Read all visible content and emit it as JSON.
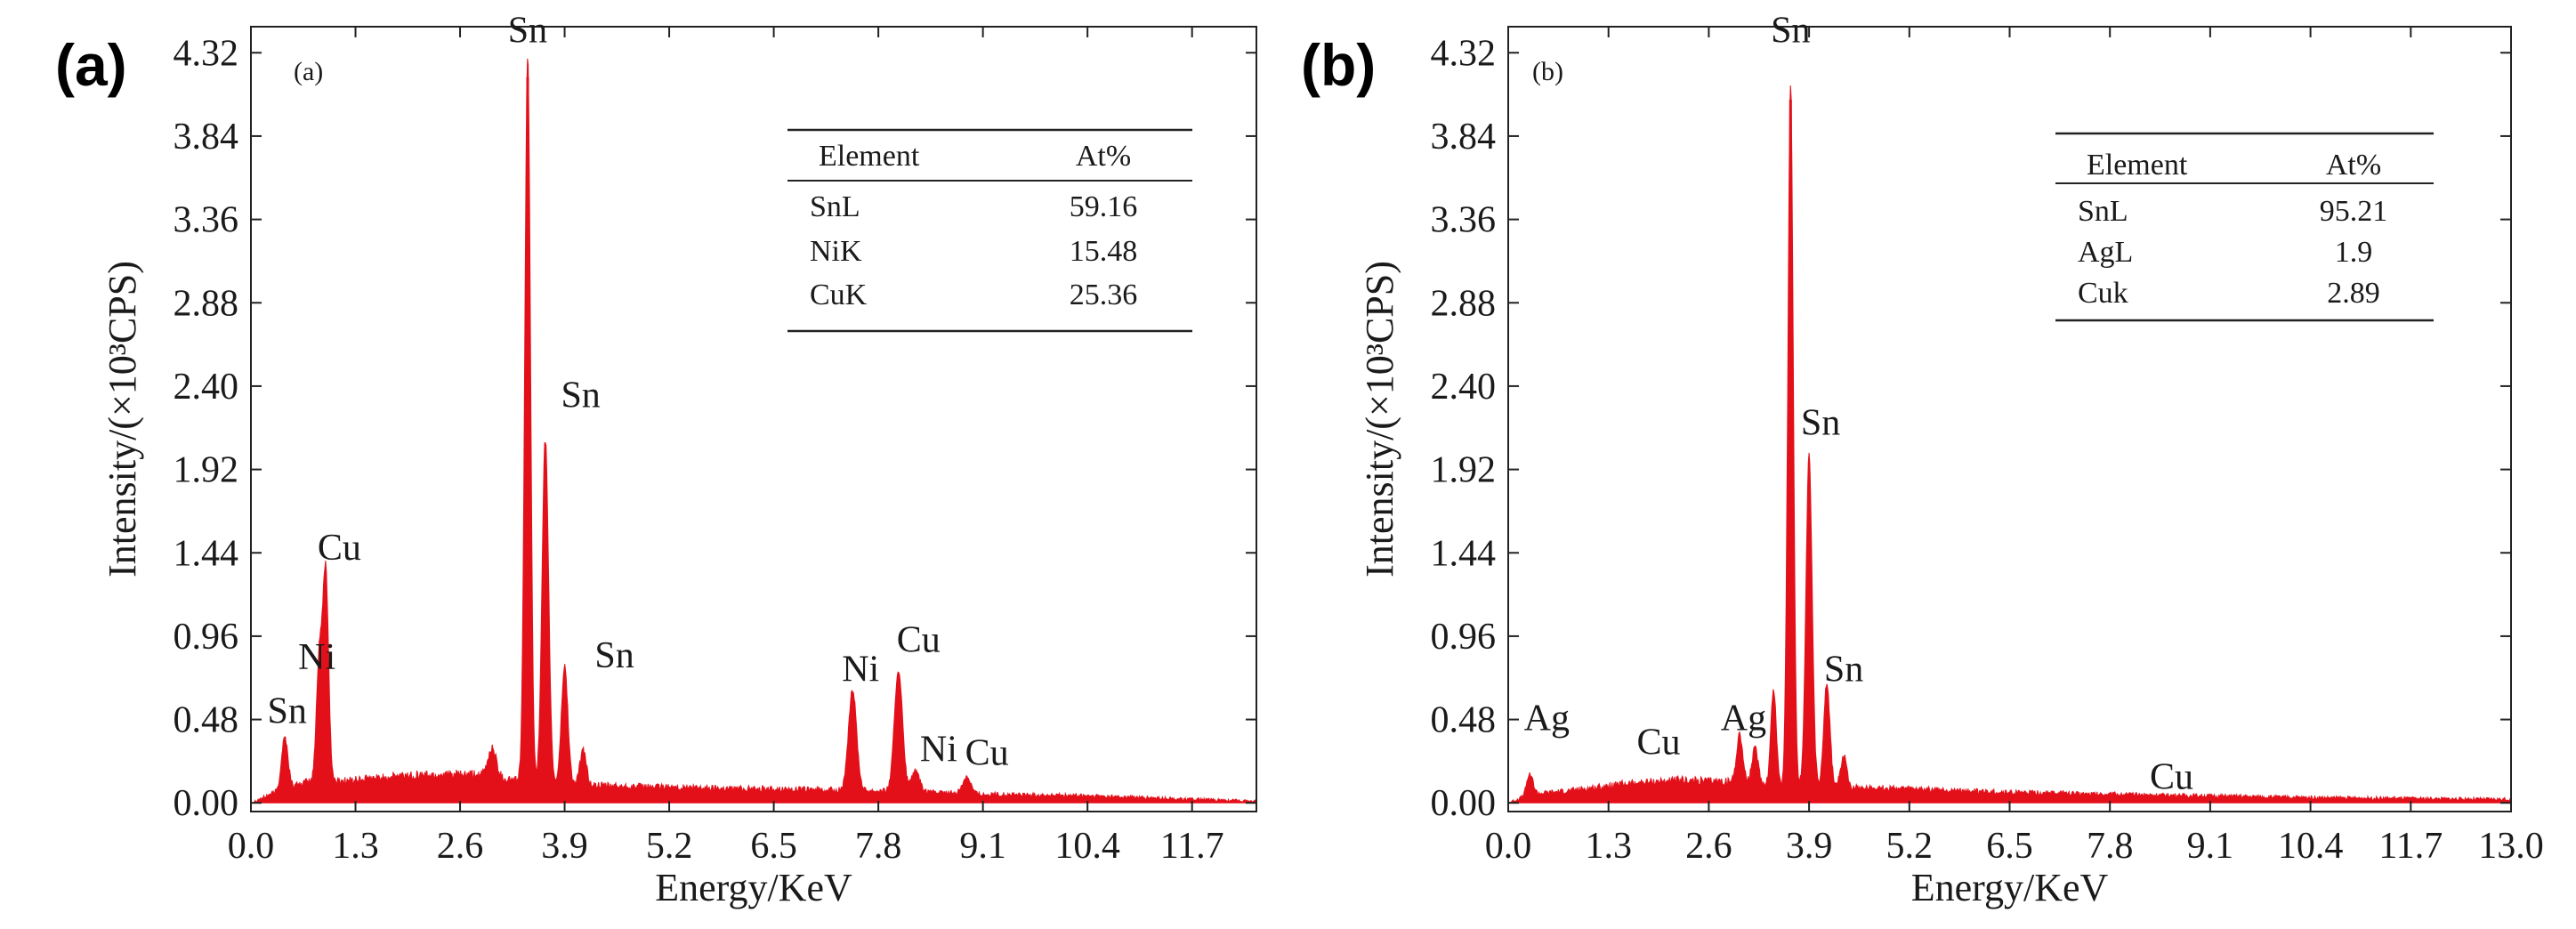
{
  "chart_data": [
    {
      "type": "area",
      "panel_label": "(a)",
      "inner_label": "(a)",
      "xlabel": "Energy/KeV",
      "ylabel": "Intensity/(×10³CPS)",
      "xlim": [
        0,
        12.5
      ],
      "ylim": [
        -0.05,
        4.47
      ],
      "x_ticks": [
        0.0,
        1.3,
        2.6,
        3.9,
        5.2,
        6.5,
        7.8,
        9.1,
        10.4,
        11.7
      ],
      "x_tick_labels": [
        "0.0",
        "1.3",
        "2.6",
        "3.9",
        "5.2",
        "6.5",
        "7.8",
        "9.1",
        "10.4",
        "11.7"
      ],
      "y_ticks": [
        0.0,
        0.48,
        0.96,
        1.44,
        1.92,
        2.4,
        2.88,
        3.36,
        3.84,
        4.32
      ],
      "y_tick_labels": [
        "0.00",
        "0.48",
        "0.96",
        "1.44",
        "1.92",
        "2.40",
        "2.88",
        "3.36",
        "3.84",
        "4.32"
      ],
      "series_color": "#e3101a",
      "background": [
        [
          0.0,
          0.0
        ],
        [
          0.3,
          0.06
        ],
        [
          0.7,
          0.12
        ],
        [
          1.3,
          0.13
        ],
        [
          2.0,
          0.16
        ],
        [
          2.8,
          0.16
        ],
        [
          3.5,
          0.12
        ],
        [
          4.2,
          0.1
        ],
        [
          5.2,
          0.09
        ],
        [
          6.5,
          0.08
        ],
        [
          7.8,
          0.07
        ],
        [
          9.1,
          0.05
        ],
        [
          10.4,
          0.04
        ],
        [
          11.7,
          0.02
        ],
        [
          12.5,
          0.01
        ]
      ],
      "peaks": [
        {
          "x": 0.42,
          "height": 0.3,
          "width": 0.04
        },
        {
          "x": 0.85,
          "height": 0.72,
          "width": 0.035
        },
        {
          "x": 0.93,
          "height": 1.2,
          "width": 0.035
        },
        {
          "x": 3.0,
          "height": 0.17,
          "width": 0.05
        },
        {
          "x": 3.44,
          "height": 4.18,
          "width": 0.035
        },
        {
          "x": 3.66,
          "height": 1.98,
          "width": 0.04
        },
        {
          "x": 3.9,
          "height": 0.68,
          "width": 0.04
        },
        {
          "x": 4.13,
          "height": 0.2,
          "width": 0.04
        },
        {
          "x": 7.48,
          "height": 0.58,
          "width": 0.05
        },
        {
          "x": 8.05,
          "height": 0.7,
          "width": 0.05
        },
        {
          "x": 8.26,
          "height": 0.12,
          "width": 0.05
        },
        {
          "x": 8.9,
          "height": 0.1,
          "width": 0.05
        }
      ],
      "annotations": [
        {
          "text": "Sn",
          "x": 3.44,
          "y": 4.38
        },
        {
          "text": "Sn",
          "x": 4.1,
          "y": 2.28
        },
        {
          "text": "Sn",
          "x": 4.52,
          "y": 0.78
        },
        {
          "text": "Cu",
          "x": 1.1,
          "y": 1.4
        },
        {
          "text": "Ni",
          "x": 0.82,
          "y": 0.77
        },
        {
          "text": "Sn",
          "x": 0.45,
          "y": 0.46
        },
        {
          "text": "Ni",
          "x": 7.58,
          "y": 0.7
        },
        {
          "text": "Cu",
          "x": 8.3,
          "y": 0.87
        },
        {
          "text": "Ni",
          "x": 8.55,
          "y": 0.24
        },
        {
          "text": "Cu",
          "x": 9.15,
          "y": 0.22
        }
      ],
      "table": {
        "headers": [
          "Element",
          "At%"
        ],
        "rows": [
          [
            "SnL",
            "59.16"
          ],
          [
            "NiK",
            "15.48"
          ],
          [
            "CuK",
            "25.36"
          ]
        ]
      }
    },
    {
      "type": "area",
      "panel_label": "(b)",
      "inner_label": "(b)",
      "xlabel": "Energy/KeV",
      "ylabel": "Intensity/(×10³CPS)",
      "xlim": [
        0,
        13.0
      ],
      "ylim": [
        -0.05,
        4.47
      ],
      "x_ticks": [
        0.0,
        1.3,
        2.6,
        3.9,
        5.2,
        6.5,
        7.8,
        9.1,
        10.4,
        11.7,
        13.0
      ],
      "x_tick_labels": [
        "0.0",
        "1.3",
        "2.6",
        "3.9",
        "5.2",
        "6.5",
        "7.8",
        "9.1",
        "10.4",
        "11.7",
        "13.0"
      ],
      "y_ticks": [
        0.0,
        0.48,
        0.96,
        1.44,
        1.92,
        2.4,
        2.88,
        3.36,
        3.84,
        4.32
      ],
      "y_tick_labels": [
        "0.00",
        "0.48",
        "0.96",
        "1.44",
        "1.92",
        "2.40",
        "2.88",
        "3.36",
        "3.84",
        "4.32"
      ],
      "series_color": "#e3101a",
      "background": [
        [
          0.0,
          0.0
        ],
        [
          0.3,
          0.05
        ],
        [
          0.8,
          0.07
        ],
        [
          1.5,
          0.11
        ],
        [
          2.2,
          0.13
        ],
        [
          2.9,
          0.12
        ],
        [
          3.5,
          0.1
        ],
        [
          4.5,
          0.09
        ],
        [
          5.2,
          0.08
        ],
        [
          6.5,
          0.06
        ],
        [
          7.8,
          0.05
        ],
        [
          9.1,
          0.04
        ],
        [
          10.4,
          0.03
        ],
        [
          11.7,
          0.025
        ],
        [
          13.0,
          0.02
        ]
      ],
      "peaks": [
        {
          "x": 0.28,
          "height": 0.12,
          "width": 0.04
        },
        {
          "x": 3.0,
          "height": 0.28,
          "width": 0.04
        },
        {
          "x": 3.2,
          "height": 0.2,
          "width": 0.04
        },
        {
          "x": 3.44,
          "height": 0.55,
          "width": 0.035
        },
        {
          "x": 3.66,
          "height": 4.05,
          "width": 0.035
        },
        {
          "x": 3.9,
          "height": 1.9,
          "width": 0.04
        },
        {
          "x": 4.13,
          "height": 0.6,
          "width": 0.04
        },
        {
          "x": 4.35,
          "height": 0.18,
          "width": 0.04
        }
      ],
      "annotations": [
        {
          "text": "Sn",
          "x": 3.66,
          "y": 4.38
        },
        {
          "text": "Sn",
          "x": 4.05,
          "y": 2.12
        },
        {
          "text": "Sn",
          "x": 4.35,
          "y": 0.7
        },
        {
          "text": "Ag",
          "x": 0.5,
          "y": 0.42
        },
        {
          "text": "Cu",
          "x": 1.95,
          "y": 0.28
        },
        {
          "text": "Ag",
          "x": 3.05,
          "y": 0.42
        },
        {
          "text": "Cu",
          "x": 8.6,
          "y": 0.08
        }
      ],
      "table": {
        "headers": [
          "Element",
          "At%"
        ],
        "rows": [
          [
            "SnL",
            "95.21"
          ],
          [
            "AgL",
            "1.9"
          ],
          [
            "Cuk",
            "2.89"
          ]
        ]
      }
    }
  ]
}
